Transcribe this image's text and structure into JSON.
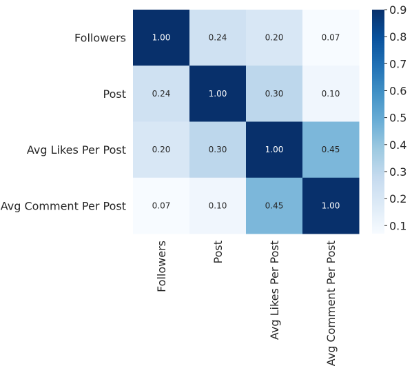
{
  "chart_data": {
    "type": "heatmap",
    "title": "",
    "xlabel": "",
    "ylabel": "",
    "row_labels": [
      "Followers",
      "Post",
      "Avg Likes Per Post",
      "Avg Comment Per Post"
    ],
    "col_labels": [
      "Followers",
      "Post",
      "Avg Likes Per Post",
      "Avg Comment Per Post"
    ],
    "values": [
      [
        1.0,
        0.24,
        0.2,
        0.07
      ],
      [
        0.24,
        1.0,
        0.3,
        0.1
      ],
      [
        0.2,
        0.3,
        1.0,
        0.45
      ],
      [
        0.07,
        0.1,
        0.45,
        1.0
      ]
    ],
    "annotations": [
      [
        "1.00",
        "0.24",
        "0.20",
        "0.07"
      ],
      [
        "0.24",
        "1.00",
        "0.30",
        "0.10"
      ],
      [
        "0.20",
        "0.30",
        "1.00",
        "0.45"
      ],
      [
        "0.07",
        "0.10",
        "0.45",
        "1.00"
      ]
    ],
    "colormap": "Blues",
    "colorbar": {
      "vmin": 0.07,
      "vmax": 0.9,
      "ticks": [
        "0.1",
        "0.2",
        "0.3",
        "0.4",
        "0.5",
        "0.6",
        "0.7",
        "0.8",
        "0.9"
      ],
      "tick_values": [
        0.1,
        0.2,
        0.3,
        0.4,
        0.5,
        0.6,
        0.7,
        0.8,
        0.9
      ]
    },
    "grid": false
  }
}
